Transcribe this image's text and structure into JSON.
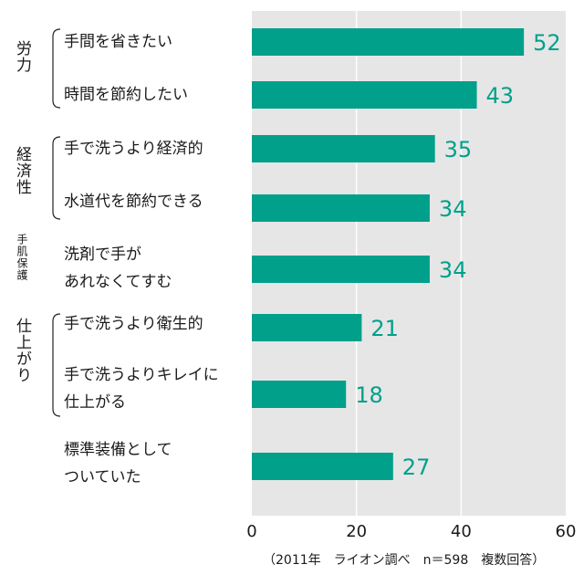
{
  "chart_data": {
    "type": "bar",
    "orientation": "horizontal",
    "xlim": [
      0,
      60
    ],
    "ticks": [
      "0",
      "20",
      "40",
      "60"
    ],
    "grid": true,
    "categories": [
      "手間を省きたい",
      "時間を節約したい",
      "手で洗うより経済的",
      "水道代を節約できる",
      "洗剤で手が\nあれなくてすむ",
      "手で洗うより衛生的",
      "手で洗うよりキレイに\n仕上がる",
      "標準装備として\nついていた"
    ],
    "values": [
      52,
      43,
      35,
      34,
      34,
      21,
      18,
      27
    ],
    "groups": [
      {
        "label": "労力",
        "members": [
          0,
          1
        ]
      },
      {
        "label": "経済性",
        "members": [
          2,
          3
        ]
      },
      {
        "label": "手肌保護",
        "members": [
          4
        ]
      },
      {
        "label": "仕上がり",
        "members": [
          5,
          6
        ]
      }
    ],
    "note": "（2011年　ライオン調べ　n＝598　複数回答）",
    "bar_color": "#00a08a",
    "value_label_color": "#00a08a",
    "background_color": "#e6e6e6"
  }
}
